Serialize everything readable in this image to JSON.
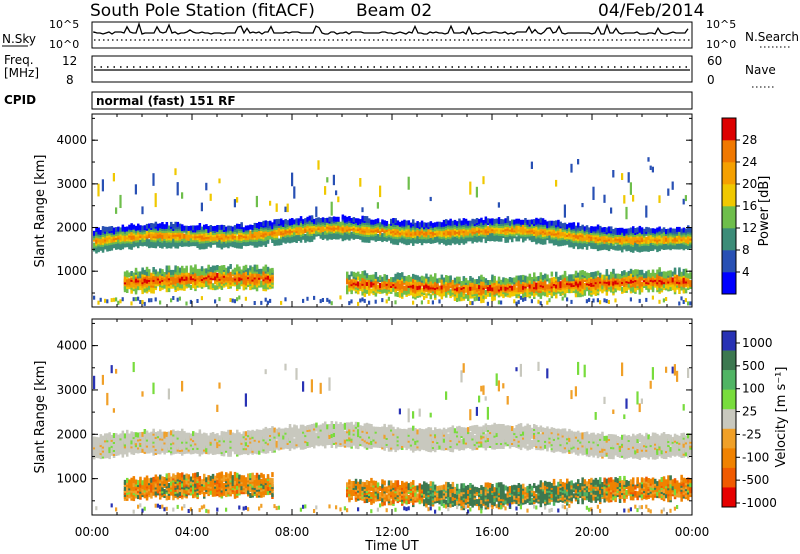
{
  "header": {
    "station": "South Pole Station (fitACF)",
    "beam": "Beam 02",
    "date": "04/Feb/2014"
  },
  "labels": {
    "nsky": "N.Sky",
    "nsearch": "N.Search",
    "freq_line1": "Freq.",
    "freq_line2": "[MHz]",
    "nave": "Nave",
    "cpid": "CPID",
    "cpid_value": "normal (fast) 151 RF",
    "noise_tick_hi_left": "10^5",
    "noise_tick_lo_left": "10^0",
    "noise_tick_hi_right": "10^5",
    "noise_tick_lo_right": "10^0",
    "freq_tick_hi": "12",
    "freq_tick_lo": "8",
    "nave_tick_hi": "60",
    "nave_tick_lo": "0"
  },
  "chart_data": [
    {
      "type": "heatmap",
      "name": "power-panel",
      "ylabel": "Slant Range [km]",
      "yticks": [
        "1000",
        "2000",
        "3000",
        "4000"
      ],
      "ylim": [
        180,
        4600
      ],
      "colorbar_label": "Power [dB]",
      "colorbar_ticks": [
        "4",
        "8",
        "12",
        "16",
        "20",
        "24",
        "28"
      ],
      "colors": [
        "#0000ff",
        "#2850b4",
        "#3c8c78",
        "#6ebe4b",
        "#f0c800",
        "#f5a000",
        "#f07800",
        "#dc0000"
      ]
    },
    {
      "type": "heatmap",
      "name": "velocity-panel",
      "ylabel": "Slant Range [km]",
      "yticks": [
        "1000",
        "2000",
        "3000",
        "4000"
      ],
      "ylim": [
        180,
        4600
      ],
      "colorbar_label": "Velocity [m s⁻¹]",
      "colorbar_ticks": [
        "1000",
        "500",
        "100",
        "25",
        "-25",
        "-100",
        "-500",
        "-1000"
      ],
      "colors": [
        "#2832b4",
        "#3c7850",
        "#50b464",
        "#78dc3c",
        "#c8c8be",
        "#f0a028",
        "#f08200",
        "#f05a00",
        "#e60000"
      ],
      "xlabel": "Time UT",
      "xticks": [
        "00:00",
        "04:00",
        "08:00",
        "12:00",
        "16:00",
        "20:00",
        "00:00"
      ]
    }
  ]
}
